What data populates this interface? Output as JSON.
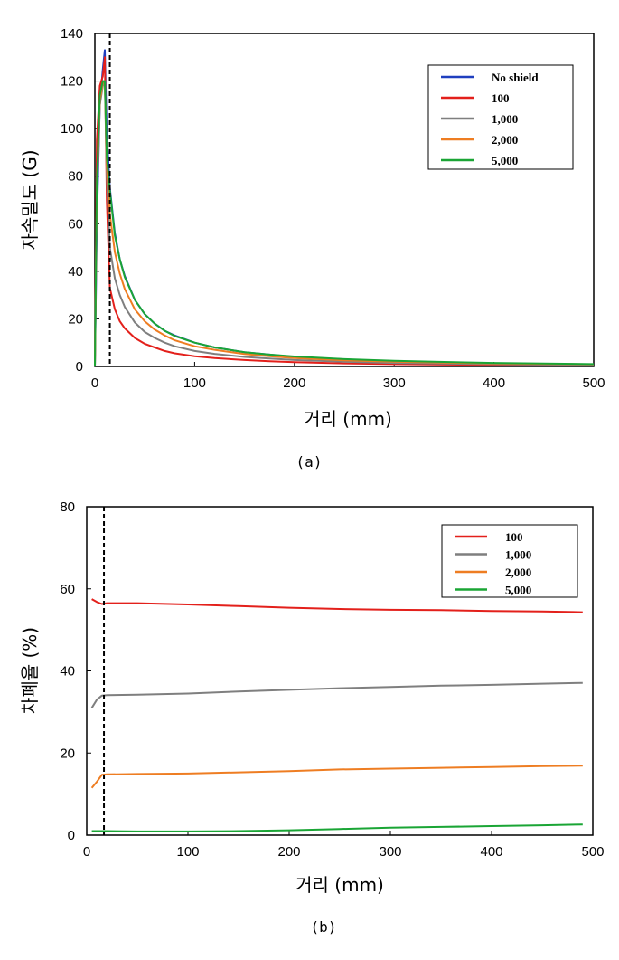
{
  "chart_data": [
    {
      "type": "line",
      "caption": "(a)",
      "xlabel": "거리 (mm)",
      "ylabel": "자속밀도 (G)",
      "xlim": [
        0,
        500
      ],
      "ylim": [
        0,
        140
      ],
      "xticks": [
        0,
        100,
        200,
        300,
        400,
        500
      ],
      "yticks": [
        0,
        20,
        40,
        60,
        80,
        100,
        120,
        140
      ],
      "grid": false,
      "legend_position": "top-right",
      "marker_line_x": 15,
      "x": [
        0,
        2,
        5,
        8,
        10,
        12,
        15,
        20,
        25,
        30,
        40,
        50,
        60,
        70,
        80,
        100,
        120,
        150,
        175,
        200,
        250,
        300,
        350,
        400,
        450,
        500
      ],
      "series": [
        {
          "name": "No shield",
          "color": "#1f3fbf",
          "values": [
            0,
            60,
            110,
            125,
            133,
            98,
            75,
            56,
            45,
            38,
            28,
            22,
            18,
            15,
            13,
            10,
            8,
            6,
            5,
            4,
            3,
            2,
            1.6,
            1.3,
            1,
            0.8
          ]
        },
        {
          "name": "100",
          "color": "#e3201b",
          "values": [
            0,
            95,
            118,
            122,
            130,
            70,
            33,
            24,
            19,
            16,
            12,
            9.5,
            8,
            6.5,
            5.5,
            4.3,
            3.5,
            2.7,
            2.2,
            1.8,
            1.3,
            1,
            0.8,
            0.6,
            0.5,
            0.4
          ]
        },
        {
          "name": "1,000",
          "color": "#7f7f7f",
          "values": [
            0,
            70,
            110,
            118,
            119,
            80,
            50,
            37,
            30,
            25,
            18.5,
            14.5,
            12,
            10,
            8.5,
            6.5,
            5.3,
            4,
            3.3,
            2.7,
            2,
            1.5,
            1.2,
            1,
            0.8,
            0.7
          ]
        },
        {
          "name": "2,000",
          "color": "#ee7d22",
          "values": [
            0,
            75,
            112,
            119,
            120,
            85,
            64,
            48,
            39,
            32.5,
            24,
            19,
            15.5,
            13,
            11,
            8.5,
            7,
            5.2,
            4.3,
            3.5,
            2.6,
            2,
            1.6,
            1.3,
            1.1,
            0.9
          ]
        },
        {
          "name": "5,000",
          "color": "#1aa535",
          "values": [
            0,
            78,
            114,
            120,
            120,
            88,
            74,
            55,
            45,
            37.5,
            28,
            22,
            18,
            15,
            12.8,
            10,
            8,
            6,
            5,
            4.2,
            3.1,
            2.4,
            1.9,
            1.5,
            1.2,
            1
          ]
        }
      ]
    },
    {
      "type": "line",
      "caption": "(b)",
      "xlabel": "거리 (mm)",
      "ylabel": "차폐율 (%)",
      "xlim": [
        0,
        500
      ],
      "ylim": [
        0,
        80
      ],
      "xticks": [
        0,
        100,
        200,
        300,
        400,
        500
      ],
      "yticks": [
        0,
        20,
        40,
        60,
        80
      ],
      "grid": false,
      "legend_position": "top-right",
      "marker_line_x": 17,
      "x": [
        5,
        10,
        15,
        20,
        50,
        100,
        150,
        200,
        250,
        300,
        350,
        400,
        450,
        490
      ],
      "series": [
        {
          "name": "100",
          "color": "#e3201b",
          "values": [
            57.5,
            56.8,
            56.3,
            56.5,
            56.5,
            56.2,
            55.8,
            55.4,
            55.1,
            54.9,
            54.8,
            54.6,
            54.5,
            54.3
          ]
        },
        {
          "name": "1,000",
          "color": "#7f7f7f",
          "values": [
            31,
            33,
            34,
            34.1,
            34.2,
            34.5,
            35,
            35.4,
            35.8,
            36.1,
            36.4,
            36.6,
            36.9,
            37.1
          ]
        },
        {
          "name": "2,000",
          "color": "#ee7d22",
          "values": [
            11.5,
            13,
            14.7,
            14.8,
            14.9,
            15,
            15.3,
            15.6,
            16,
            16.2,
            16.4,
            16.6,
            16.8,
            16.9
          ]
        },
        {
          "name": "5,000",
          "color": "#1aa535",
          "values": [
            1,
            1,
            1,
            1,
            0.9,
            0.9,
            1,
            1.2,
            1.5,
            1.8,
            2,
            2.2,
            2.4,
            2.6
          ]
        }
      ]
    }
  ]
}
